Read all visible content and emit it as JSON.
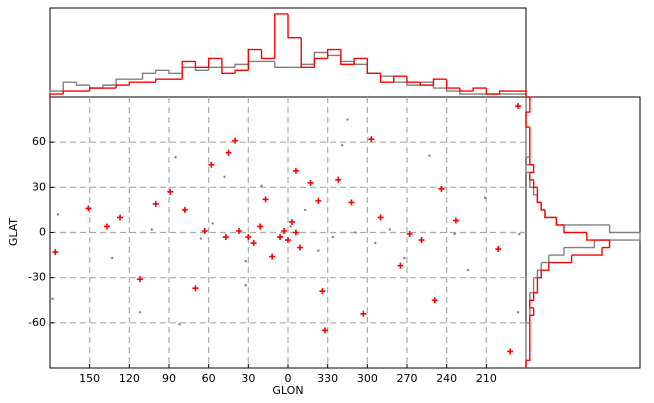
{
  "chart_data": [
    {
      "type": "scatter",
      "xlabel": "GLON",
      "ylabel": "GLAT",
      "xlim": [
        180,
        -180
      ],
      "ylim": [
        -90,
        90
      ],
      "xticks": [
        150,
        120,
        90,
        60,
        30,
        0,
        {
          "value": -30,
          "label": "330"
        },
        {
          "value": -60,
          "label": "300"
        },
        {
          "value": -90,
          "label": "270"
        },
        {
          "value": -120,
          "label": "240"
        },
        {
          "value": -150,
          "label": "210"
        }
      ],
      "yticks": [
        -60,
        -30,
        0,
        30,
        60
      ],
      "grid": true,
      "series": [
        {
          "color": "#808080",
          "marker": "dot",
          "x": [
            178,
            174,
            133,
            112,
            103,
            85,
            82,
            66,
            48,
            32,
            20,
            5,
            -2,
            -13,
            -23,
            -34,
            -45,
            -51,
            -66,
            -77,
            -88,
            -107,
            -126,
            -136,
            -149,
            -174,
            -175,
            -41,
            32,
            57
          ],
          "y": [
            -44,
            12,
            -17,
            -53,
            2,
            50,
            -61,
            -4,
            37,
            -19,
            31,
            -3,
            4,
            15,
            -12,
            -3,
            75,
            0,
            -7,
            2,
            -17,
            51,
            -1,
            -25,
            23,
            -53,
            -1,
            58,
            -35,
            6
          ]
        },
        {
          "color": "#ff0000",
          "marker": "plus",
          "x": [
            176,
            151,
            137,
            127,
            112,
            89,
            78,
            70,
            58,
            45,
            40,
            30,
            26,
            17,
            12,
            6,
            3,
            0,
            -3,
            -6,
            -9,
            -6,
            -17,
            -23,
            -26,
            -28,
            -38,
            -48,
            -57,
            -63,
            -70,
            -85,
            -92,
            -101,
            -111,
            -116,
            -127,
            -159,
            -168,
            -174,
            100,
            37,
            47,
            63,
            21
          ],
          "y": [
            -13,
            16,
            4,
            10,
            -31,
            27,
            15,
            -37,
            45,
            53,
            61,
            -3,
            -7,
            22,
            -16,
            -3,
            1,
            -5,
            7,
            0,
            -10,
            41,
            33,
            21,
            -39,
            -65,
            35,
            20,
            -54,
            62,
            10,
            -22,
            -1,
            -5,
            -45,
            29,
            8,
            -11,
            -79,
            84,
            19,
            1,
            -3,
            1,
            4
          ]
        }
      ]
    },
    {
      "type": "histogram",
      "orientation": "vertical",
      "xlim": [
        180,
        -180
      ],
      "ylim": [
        0,
        30
      ],
      "bins": [
        180,
        170,
        160,
        150,
        140,
        130,
        120,
        110,
        100,
        90,
        80,
        70,
        60,
        50,
        40,
        30,
        20,
        10,
        0,
        -10,
        -20,
        -30,
        -40,
        -50,
        -60,
        -70,
        -80,
        -90,
        -100,
        -110,
        -120,
        -130,
        -140,
        -150,
        -160,
        -170,
        -180
      ],
      "series": [
        {
          "color": "#808080",
          "values": [
            2,
            5,
            4,
            3,
            4,
            6,
            6,
            8,
            9,
            8,
            10,
            9,
            10,
            10,
            11,
            12,
            12,
            10,
            10,
            11,
            15,
            14,
            12,
            11,
            8,
            7,
            5,
            4,
            5,
            3,
            2,
            1,
            1,
            1,
            1,
            1
          ]
        },
        {
          "color": "#ff0000",
          "values": [
            1,
            2,
            2,
            3,
            3,
            4,
            5,
            5,
            6,
            6,
            12,
            10,
            13,
            8,
            9,
            16,
            13,
            28,
            20,
            10,
            13,
            16,
            11,
            13,
            8,
            5,
            7,
            5,
            4,
            6,
            3,
            2,
            3,
            1,
            2,
            2
          ]
        }
      ]
    },
    {
      "type": "histogram",
      "orientation": "horizontal",
      "ylim": [
        -90,
        90
      ],
      "xlim": [
        0,
        30
      ],
      "bins": [
        -90,
        -85,
        -80,
        -75,
        -70,
        -65,
        -60,
        -55,
        -50,
        -45,
        -40,
        -35,
        -30,
        -25,
        -20,
        -15,
        -10,
        -5,
        0,
        5,
        10,
        15,
        20,
        25,
        30,
        35,
        40,
        45,
        50,
        55,
        60,
        65,
        70,
        75,
        80,
        85,
        90
      ],
      "series": [
        {
          "color": "#808080",
          "values": [
            0,
            0,
            0,
            0,
            0,
            0,
            1,
            1,
            1,
            1,
            2,
            2,
            3,
            4,
            6,
            10,
            18,
            30,
            22,
            8,
            5,
            4,
            3,
            2,
            1,
            1,
            0,
            1,
            0,
            0,
            0,
            0,
            0,
            0,
            0,
            0
          ]
        },
        {
          "color": "#ff0000",
          "values": [
            0,
            1,
            1,
            1,
            1,
            1,
            1,
            2,
            1,
            2,
            3,
            3,
            4,
            6,
            12,
            20,
            22,
            16,
            10,
            8,
            5,
            4,
            3,
            3,
            2,
            1,
            2,
            1,
            1,
            1,
            1,
            1,
            0,
            0,
            1,
            1
          ]
        }
      ]
    }
  ]
}
